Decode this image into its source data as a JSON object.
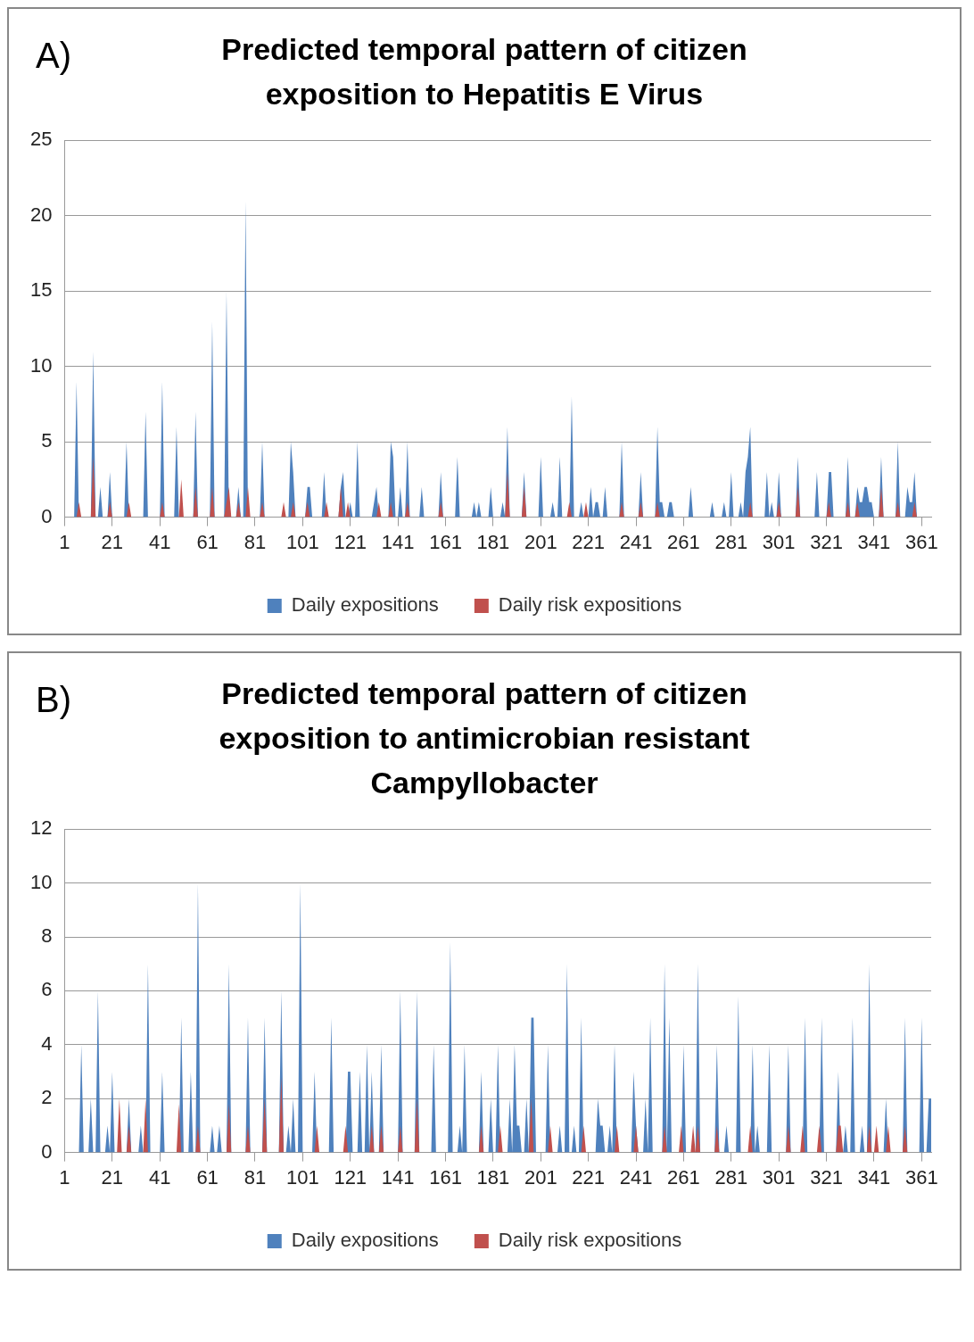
{
  "chart_data": [
    {
      "type": "area",
      "title": "Predicted temporal pattern of citizen exposition to Hepatitis E Virus",
      "annotations": [
        "A)"
      ],
      "xlim": [
        1,
        365
      ],
      "xticks": [
        1,
        21,
        41,
        61,
        81,
        101,
        121,
        141,
        161,
        181,
        201,
        221,
        241,
        261,
        281,
        301,
        321,
        341,
        361
      ],
      "ylim": [
        0,
        25
      ],
      "yticks": [
        0,
        5,
        10,
        15,
        20,
        25
      ],
      "grid": "y",
      "legend": "bottom",
      "series": [
        {
          "name": "Daily expositions",
          "color": "#4f81bd",
          "x": [
            1,
            5,
            6,
            7,
            12,
            13,
            14,
            15,
            16,
            17,
            19,
            20,
            21,
            26,
            27,
            28,
            34,
            35,
            36,
            41,
            42,
            43,
            47,
            48,
            49,
            55,
            56,
            57,
            62,
            63,
            64,
            68,
            69,
            70,
            73,
            74,
            75,
            76,
            77,
            78,
            83,
            84,
            85,
            95,
            96,
            97,
            98,
            102,
            103,
            104,
            105,
            109,
            110,
            111,
            116,
            117,
            118,
            119,
            120,
            121,
            122,
            123,
            124,
            125,
            130,
            131,
            132,
            133,
            137,
            138,
            139,
            140,
            141,
            142,
            143,
            144,
            145,
            146,
            150,
            151,
            152,
            158,
            159,
            160,
            165,
            166,
            167,
            172,
            173,
            174,
            175,
            176,
            179,
            180,
            181,
            184,
            185,
            186,
            187,
            188,
            193,
            194,
            195,
            200,
            201,
            202,
            205,
            206,
            207,
            208,
            209,
            210,
            213,
            214,
            215,
            217,
            218,
            219,
            221,
            222,
            223,
            224,
            225,
            226,
            227,
            228,
            229,
            234,
            235,
            236,
            242,
            243,
            244,
            249,
            250,
            251,
            252,
            253,
            254,
            255,
            256,
            257,
            263,
            264,
            265,
            272,
            273,
            274,
            277,
            278,
            279,
            280,
            281,
            282,
            284,
            285,
            286,
            287,
            288,
            289,
            290,
            295,
            296,
            297,
            298,
            299,
            300,
            301,
            302,
            308,
            309,
            310,
            316,
            317,
            318,
            321,
            322,
            323,
            324,
            329,
            330,
            331,
            333,
            334,
            335,
            336,
            337,
            338,
            339,
            340,
            341,
            343,
            344,
            345,
            350,
            351,
            352,
            354,
            355,
            356,
            357,
            358,
            359,
            365
          ],
          "values": [
            0,
            0,
            9,
            0,
            0,
            11,
            0,
            0,
            2,
            0,
            0,
            3,
            0,
            0,
            5,
            0,
            0,
            7,
            0,
            0,
            9,
            0,
            0,
            6,
            0,
            0,
            7,
            0,
            0,
            13,
            0,
            0,
            15,
            0,
            0,
            2,
            0,
            0,
            21,
            0,
            0,
            5,
            0,
            0,
            5,
            3,
            0,
            0,
            2,
            2,
            0,
            0,
            3,
            0,
            0,
            2,
            3,
            0,
            0,
            1,
            0,
            0,
            5,
            0,
            0,
            1,
            2,
            0,
            0,
            5,
            4,
            0,
            0,
            2,
            0,
            0,
            5,
            0,
            0,
            2,
            0,
            0,
            3,
            0,
            0,
            4,
            0,
            0,
            1,
            0,
            1,
            0,
            0,
            2,
            0,
            0,
            1,
            0,
            6,
            0,
            0,
            3,
            0,
            0,
            4,
            0,
            0,
            1,
            0,
            0,
            4,
            0,
            0,
            8,
            0,
            0,
            1,
            0,
            0,
            2,
            0,
            1,
            1,
            0,
            0,
            2,
            0,
            0,
            5,
            0,
            0,
            3,
            0,
            0,
            6,
            1,
            1,
            0,
            0,
            1,
            1,
            0,
            0,
            2,
            0,
            0,
            1,
            0,
            0,
            1,
            0,
            0,
            3,
            0,
            0,
            1,
            0,
            3,
            4,
            6,
            0,
            0,
            3,
            0,
            1,
            0,
            0,
            3,
            0,
            0,
            4,
            0,
            0,
            3,
            0,
            0,
            3,
            3,
            0,
            0,
            4,
            0,
            0,
            2,
            1,
            1,
            2,
            2,
            1,
            1,
            0,
            0,
            4,
            0,
            0,
            5,
            0,
            0,
            2,
            1,
            1,
            3,
            0,
            0
          ]
        },
        {
          "name": "Daily risk expositions",
          "color": "#c0504d",
          "x": [
            1,
            6,
            7,
            8,
            12,
            13,
            14,
            19,
            20,
            21,
            27,
            28,
            29,
            41,
            42,
            43,
            49,
            50,
            51,
            55,
            56,
            57,
            62,
            63,
            64,
            68,
            69,
            70,
            71,
            73,
            74,
            75,
            77,
            78,
            79,
            83,
            84,
            85,
            92,
            93,
            94,
            96,
            97,
            98,
            102,
            103,
            104,
            110,
            111,
            112,
            116,
            117,
            118,
            119,
            120,
            121,
            132,
            133,
            134,
            137,
            138,
            139,
            144,
            145,
            146,
            158,
            159,
            160,
            186,
            187,
            188,
            193,
            194,
            195,
            212,
            213,
            214,
            219,
            220,
            221,
            234,
            235,
            236,
            242,
            243,
            244,
            249,
            250,
            251,
            288,
            289,
            290,
            300,
            301,
            302,
            308,
            309,
            310,
            321,
            322,
            323,
            329,
            330,
            331,
            333,
            334,
            335,
            343,
            344,
            345,
            350,
            351,
            352,
            357,
            358,
            359,
            365
          ],
          "values": [
            0,
            0,
            1,
            0,
            0,
            4,
            0,
            0,
            1,
            0,
            0,
            1,
            0,
            0,
            1,
            0,
            0,
            2.5,
            0,
            0,
            2,
            0,
            0,
            2,
            0,
            0,
            1,
            2,
            0,
            0,
            1,
            0,
            0,
            2,
            0,
            0,
            1,
            0,
            0,
            1,
            0,
            0,
            1,
            0,
            0,
            1,
            0,
            0,
            1,
            0,
            0,
            2,
            0,
            0,
            1,
            0,
            0,
            1,
            0,
            0,
            1,
            0,
            0,
            1,
            0,
            0,
            1,
            0,
            0,
            3,
            0,
            0,
            2,
            0,
            0,
            1,
            0,
            0,
            1,
            0,
            0,
            1,
            0,
            0,
            1,
            0,
            0,
            1,
            0,
            0,
            1,
            0,
            0,
            1,
            0,
            0,
            2,
            0,
            0,
            1,
            0,
            0,
            1,
            0,
            0,
            1,
            0,
            0,
            2,
            0,
            0,
            1,
            0,
            0,
            1,
            0,
            0
          ]
        }
      ]
    },
    {
      "type": "area",
      "title": "Predicted temporal pattern of citizen exposition to antimicrobian resistant Campyllobacter",
      "annotations": [
        "B)"
      ],
      "xlim": [
        1,
        365
      ],
      "xticks": [
        1,
        21,
        41,
        61,
        81,
        101,
        121,
        141,
        161,
        181,
        201,
        221,
        241,
        261,
        281,
        301,
        321,
        341,
        361
      ],
      "ylim": [
        0,
        12
      ],
      "yticks": [
        0,
        2,
        4,
        6,
        8,
        10,
        12
      ],
      "grid": "y",
      "legend": "bottom",
      "series": [
        {
          "name": "Daily expositions",
          "color": "#4f81bd",
          "x": [
            1,
            7,
            8,
            9,
            11,
            12,
            13,
            14,
            15,
            16,
            18,
            19,
            20,
            21,
            22,
            27,
            28,
            29,
            32,
            33,
            34,
            35,
            36,
            37,
            41,
            42,
            43,
            49,
            50,
            51,
            53,
            54,
            55,
            56,
            57,
            58,
            62,
            63,
            64,
            65,
            66,
            67,
            69,
            70,
            71,
            77,
            78,
            79,
            84,
            85,
            86,
            91,
            92,
            93,
            94,
            95,
            96,
            97,
            98,
            99,
            100,
            101,
            105,
            106,
            107,
            112,
            113,
            114,
            119,
            120,
            121,
            122,
            124,
            125,
            126,
            127,
            128,
            129,
            130,
            131,
            133,
            134,
            135,
            141,
            142,
            143,
            148,
            149,
            150,
            155,
            156,
            157,
            162,
            163,
            164,
            166,
            167,
            168,
            169,
            170,
            175,
            176,
            177,
            179,
            180,
            181,
            182,
            183,
            184,
            187,
            188,
            189,
            190,
            191,
            192,
            193,
            194,
            195,
            196,
            197,
            198,
            199,
            203,
            204,
            205,
            208,
            209,
            210,
            211,
            212,
            213,
            214,
            215,
            216,
            217,
            218,
            219,
            224,
            225,
            226,
            227,
            228,
            229,
            230,
            231,
            232,
            233,
            239,
            240,
            241,
            242,
            244,
            245,
            246,
            247,
            248,
            252,
            253,
            254,
            255,
            256,
            260,
            261,
            262,
            266,
            267,
            268,
            274,
            275,
            276,
            278,
            279,
            280,
            283,
            284,
            285,
            289,
            290,
            291,
            292,
            293,
            296,
            297,
            298,
            304,
            305,
            306,
            311,
            312,
            313,
            318,
            319,
            320,
            325,
            326,
            327,
            328,
            329,
            330,
            331,
            332,
            333,
            335,
            336,
            337,
            338,
            339,
            340,
            345,
            346,
            347,
            353,
            354,
            355,
            360,
            361,
            362,
            363,
            364,
            365
          ],
          "values": [
            0,
            0,
            4,
            0,
            0,
            2,
            0,
            0,
            6,
            0,
            0,
            1,
            0,
            3,
            0,
            0,
            2,
            0,
            0,
            1,
            0,
            0,
            7,
            0,
            0,
            3,
            0,
            0,
            5,
            0,
            0,
            3,
            0,
            0,
            10,
            0,
            0,
            1,
            0,
            0,
            1,
            0,
            0,
            7,
            0,
            0,
            5,
            0,
            0,
            5,
            0,
            0,
            6,
            0,
            0,
            1,
            0,
            2,
            0,
            0,
            10,
            0,
            0,
            3,
            0,
            0,
            5,
            0,
            0,
            3,
            3,
            0,
            0,
            3,
            0,
            0,
            4,
            0,
            3,
            0,
            0,
            4,
            0,
            0,
            6,
            0,
            0,
            6,
            0,
            0,
            4,
            0,
            0,
            7.8,
            0,
            0,
            1,
            0,
            4,
            0,
            0,
            3,
            0,
            0,
            2,
            0,
            0,
            4,
            0,
            0,
            2,
            0,
            4,
            1,
            1,
            0,
            0,
            2,
            0,
            5,
            5,
            0,
            0,
            4,
            0,
            0,
            1,
            0,
            0,
            7,
            0,
            0,
            1,
            0,
            0,
            5,
            0,
            0,
            2,
            1,
            1,
            0,
            0,
            1,
            0,
            4,
            0,
            0,
            3,
            1,
            0,
            0,
            2,
            0,
            5,
            0,
            0,
            7,
            0,
            5,
            0,
            0,
            4,
            0,
            0,
            7,
            0,
            0,
            4,
            0,
            0,
            1,
            0,
            0,
            5.8,
            0,
            0,
            4,
            0,
            1,
            0,
            0,
            4,
            0,
            0,
            4,
            0,
            0,
            5,
            0,
            0,
            5,
            0,
            0,
            3,
            0,
            0,
            1,
            0,
            0,
            5,
            0,
            0,
            1,
            0,
            0,
            7,
            0,
            0,
            2,
            0,
            0,
            5,
            0,
            0,
            5,
            0,
            0,
            2,
            2
          ]
        },
        {
          "name": "Daily risk expositions",
          "color": "#c0504d",
          "x": [
            1,
            23,
            24,
            25,
            27,
            28,
            29,
            34,
            35,
            36,
            48,
            49,
            50,
            56,
            57,
            58,
            69,
            70,
            71,
            77,
            78,
            79,
            84,
            85,
            86,
            91,
            92,
            93,
            106,
            107,
            108,
            118,
            119,
            120,
            129,
            130,
            131,
            133,
            134,
            135,
            141,
            142,
            143,
            148,
            149,
            150,
            175,
            176,
            177,
            183,
            184,
            185,
            196,
            197,
            198,
            204,
            205,
            206,
            218,
            219,
            220,
            232,
            233,
            234,
            240,
            241,
            242,
            252,
            253,
            254,
            259,
            260,
            261,
            264,
            265,
            266,
            267,
            268,
            274,
            275,
            276,
            288,
            289,
            290,
            304,
            305,
            306,
            310,
            311,
            312,
            317,
            318,
            319,
            325,
            326,
            327,
            328,
            338,
            339,
            340,
            341,
            342,
            343,
            346,
            347,
            348,
            353,
            354,
            355,
            365
          ],
          "values": [
            0,
            0,
            2,
            0,
            0,
            1,
            0,
            0,
            2,
            0,
            0,
            1.8,
            0,
            0,
            1,
            0,
            0,
            1.8,
            0,
            0,
            1,
            0,
            0,
            2,
            0,
            0,
            2.8,
            0,
            0,
            1,
            0,
            0,
            1,
            0,
            0,
            1,
            0,
            0,
            1,
            0,
            0,
            1,
            0,
            0,
            2,
            0,
            0,
            1,
            0,
            0,
            1,
            0,
            0,
            2,
            0,
            0,
            1,
            0,
            0,
            1,
            0,
            0,
            1,
            0,
            0,
            1,
            0,
            0,
            1,
            0,
            0,
            1,
            0,
            0,
            1,
            0,
            1,
            0,
            0,
            1,
            0,
            0,
            1,
            0,
            0,
            1,
            0,
            0,
            1,
            0,
            0,
            1,
            0,
            0,
            1,
            1,
            0,
            0,
            1,
            0,
            0,
            1,
            0,
            0,
            1,
            0,
            0,
            1,
            0,
            0
          ]
        }
      ]
    }
  ]
}
